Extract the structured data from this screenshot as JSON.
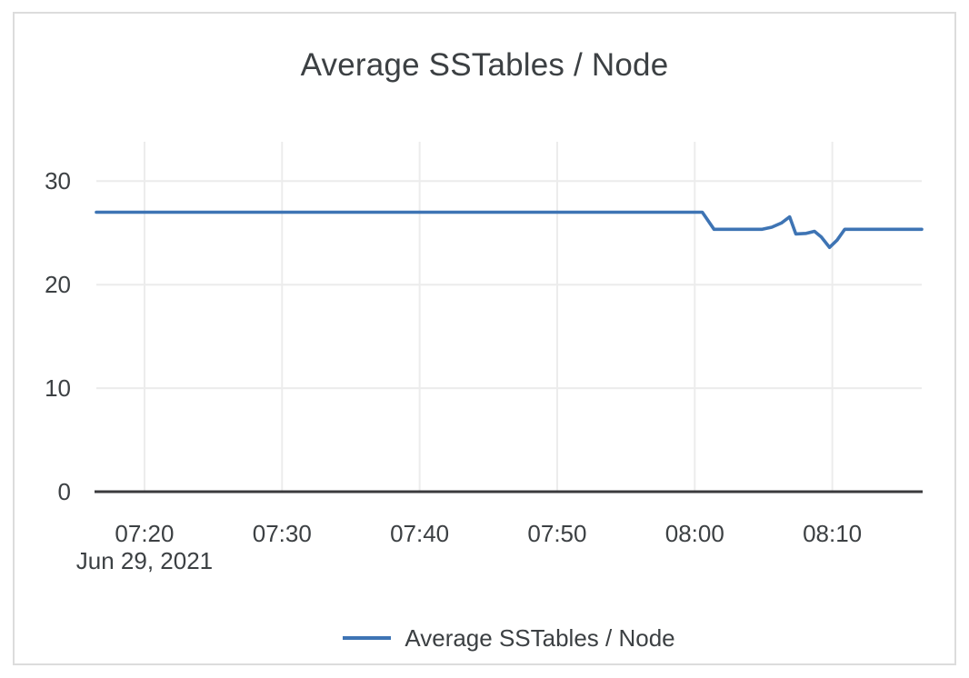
{
  "card": {
    "title": "Average SSTables / Node"
  },
  "chart_data": {
    "type": "line",
    "title": "Average SSTables / Node",
    "xlabel": "",
    "ylabel": "",
    "date_label": "Jun 29, 2021",
    "x_unit": "time of day (HH:MM); point x-values encoded as minutes after 07:00",
    "x_domain_minutes": [
      16.5,
      76.5
    ],
    "x_ticks": [
      {
        "label": "07:20",
        "minutes": 20
      },
      {
        "label": "07:30",
        "minutes": 30
      },
      {
        "label": "07:40",
        "minutes": 40
      },
      {
        "label": "07:50",
        "minutes": 50
      },
      {
        "label": "08:00",
        "minutes": 60
      },
      {
        "label": "08:10",
        "minutes": 70
      }
    ],
    "ylim": [
      0,
      33.8
    ],
    "y_ticks": [
      {
        "label": "0",
        "value": 0
      },
      {
        "label": "10",
        "value": 10
      },
      {
        "label": "20",
        "value": 20
      },
      {
        "label": "30",
        "value": 30
      }
    ],
    "grid": true,
    "legend_position": "bottom",
    "series": [
      {
        "name": "Average SSTables / Node",
        "color": "#3e74b4",
        "points_minutes_value": [
          [
            16.5,
            27
          ],
          [
            60.55,
            27
          ],
          [
            61.4,
            25.35
          ],
          [
            64.9,
            25.35
          ],
          [
            65.6,
            25.55
          ],
          [
            66.3,
            25.95
          ],
          [
            66.9,
            26.55
          ],
          [
            67.35,
            24.9
          ],
          [
            68.1,
            24.95
          ],
          [
            68.7,
            25.15
          ],
          [
            69.2,
            24.6
          ],
          [
            69.8,
            23.6
          ],
          [
            70.35,
            24.3
          ],
          [
            70.9,
            25.35
          ],
          [
            76.5,
            25.35
          ]
        ]
      }
    ]
  },
  "legend": {
    "items": [
      {
        "label": "Average SSTables / Node",
        "color": "#3e74b4"
      }
    ]
  },
  "colors": {
    "series_blue": "#3e74b4",
    "axis_line": "#3a3a3c",
    "gridline": "#ececec",
    "text": "#3c4043",
    "card_border": "#dcdcdc",
    "background": "#ffffff"
  }
}
